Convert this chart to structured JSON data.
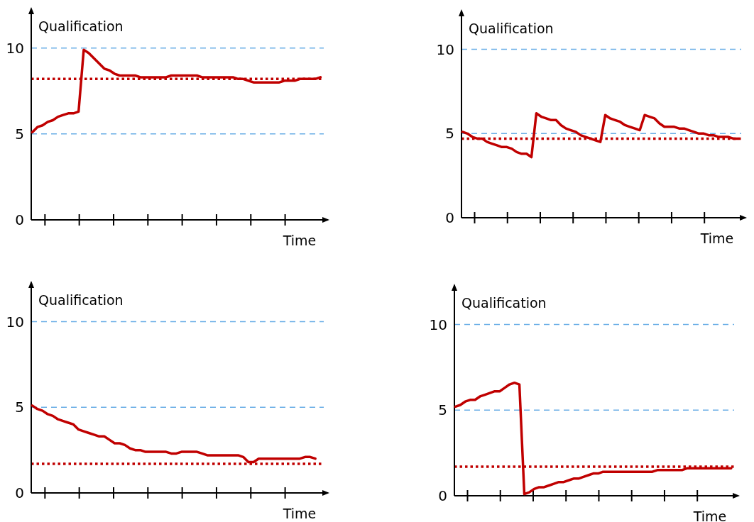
{
  "chart_data": [
    {
      "type": "line",
      "xlabel": "Time",
      "ylabel": "Qualification",
      "ylim": [
        0,
        12.3
      ],
      "yticks": [
        0,
        5,
        10
      ],
      "categories": [
        null,
        null,
        null,
        null,
        null,
        null,
        null,
        null,
        null,
        null,
        null,
        null,
        null,
        null,
        null,
        null,
        null,
        null,
        null,
        null,
        null,
        null,
        null,
        null,
        null,
        null,
        null,
        null,
        null,
        null,
        null,
        null,
        null,
        null,
        null,
        null,
        null,
        null,
        null,
        null,
        null,
        null,
        null,
        null,
        null,
        null,
        null,
        null,
        null,
        null,
        null,
        null,
        null,
        null,
        null,
        null,
        null
      ],
      "series": [
        {
          "color": "#c00000",
          "values": [
            5.1,
            5.4,
            5.5,
            5.7,
            5.8,
            6.0,
            6.1,
            6.2,
            6.2,
            6.3,
            9.9,
            9.7,
            9.4,
            9.1,
            8.8,
            8.7,
            8.5,
            8.4,
            8.4,
            8.4,
            8.4,
            8.3,
            8.3,
            8.3,
            8.3,
            8.3,
            8.3,
            8.4,
            8.4,
            8.4,
            8.4,
            8.4,
            8.4,
            8.3,
            8.3,
            8.3,
            8.3,
            8.3,
            8.3,
            8.3,
            8.2,
            8.2,
            8.1,
            8.0,
            8.0,
            8.0,
            8.0,
            8.0,
            8.0,
            8.1,
            8.1,
            8.1,
            8.2,
            8.2,
            8.2,
            8.2,
            8.3
          ]
        }
      ],
      "ref_lines": [
        {
          "axis": "y",
          "value": 5,
          "color": "#6aaee6",
          "line_style": "dashed"
        },
        {
          "axis": "y",
          "value": 10,
          "color": "#6aaee6",
          "line_style": "dashed"
        },
        {
          "axis": "y",
          "value": 8.2,
          "color": "#c00000",
          "line_style": "dotted"
        }
      ]
    },
    {
      "type": "line",
      "xlabel": "Time",
      "ylabel": "Qualification",
      "ylim": [
        0,
        12.3
      ],
      "yticks": [
        0,
        5,
        10
      ],
      "categories": [
        null,
        null,
        null,
        null,
        null,
        null,
        null,
        null,
        null,
        null,
        null,
        null,
        null,
        null,
        null,
        null,
        null,
        null,
        null,
        null,
        null,
        null,
        null,
        null,
        null,
        null,
        null,
        null,
        null,
        null,
        null,
        null,
        null,
        null,
        null,
        null,
        null,
        null,
        null,
        null,
        null,
        null,
        null,
        null,
        null,
        null,
        null,
        null,
        null,
        null,
        null,
        null,
        null,
        null,
        null,
        null,
        null
      ],
      "series": [
        {
          "color": "#c00000",
          "values": [
            5.1,
            5.0,
            4.8,
            4.7,
            4.7,
            4.5,
            4.4,
            4.3,
            4.2,
            4.2,
            4.1,
            3.9,
            3.8,
            3.8,
            3.6,
            6.2,
            6.0,
            5.9,
            5.8,
            5.8,
            5.5,
            5.3,
            5.2,
            5.1,
            4.9,
            4.8,
            4.7,
            4.6,
            4.5,
            6.1,
            5.9,
            5.8,
            5.7,
            5.5,
            5.4,
            5.3,
            5.2,
            6.1,
            6.0,
            5.9,
            5.6,
            5.4,
            5.4,
            5.4,
            5.3,
            5.3,
            5.2,
            5.1,
            5.0,
            5.0,
            4.9,
            4.9,
            4.8,
            4.8,
            4.8,
            4.7,
            4.7
          ]
        }
      ],
      "ref_lines": [
        {
          "axis": "y",
          "value": 5,
          "color": "#6aaee6",
          "line_style": "dashed"
        },
        {
          "axis": "y",
          "value": 10,
          "color": "#6aaee6",
          "line_style": "dashed"
        },
        {
          "axis": "y",
          "value": 4.7,
          "color": "#c00000",
          "line_style": "dotted"
        }
      ]
    },
    {
      "type": "line",
      "xlabel": "Time",
      "ylabel": "Qualification",
      "ylim": [
        0,
        12.3
      ],
      "yticks": [
        0,
        5,
        10
      ],
      "categories": [
        null,
        null,
        null,
        null,
        null,
        null,
        null,
        null,
        null,
        null,
        null,
        null,
        null,
        null,
        null,
        null,
        null,
        null,
        null,
        null,
        null,
        null,
        null,
        null,
        null,
        null,
        null,
        null,
        null,
        null,
        null,
        null,
        null,
        null,
        null,
        null,
        null,
        null,
        null,
        null,
        null,
        null,
        null,
        null,
        null,
        null,
        null,
        null,
        null,
        null,
        null,
        null,
        null,
        null,
        null,
        null,
        null
      ],
      "series": [
        {
          "color": "#c00000",
          "values": [
            5.1,
            4.9,
            4.8,
            4.6,
            4.5,
            4.3,
            4.2,
            4.1,
            4.0,
            3.7,
            3.6,
            3.5,
            3.4,
            3.3,
            3.3,
            3.1,
            2.9,
            2.9,
            2.8,
            2.6,
            2.5,
            2.5,
            2.4,
            2.4,
            2.4,
            2.4,
            2.4,
            2.3,
            2.3,
            2.4,
            2.4,
            2.4,
            2.4,
            2.3,
            2.2,
            2.2,
            2.2,
            2.2,
            2.2,
            2.2,
            2.2,
            2.1,
            1.8,
            1.8,
            2.0,
            2.0,
            2.0,
            2.0,
            2.0,
            2.0,
            2.0,
            2.0,
            2.0,
            2.1,
            2.1,
            2.0,
            null
          ]
        }
      ],
      "ref_lines": [
        {
          "axis": "y",
          "value": 5,
          "color": "#6aaee6",
          "line_style": "dashed"
        },
        {
          "axis": "y",
          "value": 10,
          "color": "#6aaee6",
          "line_style": "dashed"
        },
        {
          "axis": "y",
          "value": 1.7,
          "color": "#c00000",
          "line_style": "dotted"
        }
      ]
    },
    {
      "type": "line",
      "xlabel": "Time",
      "ylabel": "Qualification",
      "ylim": [
        0,
        12.3
      ],
      "yticks": [
        0,
        5,
        10
      ],
      "categories": [
        null,
        null,
        null,
        null,
        null,
        null,
        null,
        null,
        null,
        null,
        null,
        null,
        null,
        null,
        null,
        null,
        null,
        null,
        null,
        null,
        null,
        null,
        null,
        null,
        null,
        null,
        null,
        null,
        null,
        null,
        null,
        null,
        null,
        null,
        null,
        null,
        null,
        null,
        null,
        null,
        null,
        null,
        null,
        null,
        null,
        null,
        null,
        null,
        null,
        null,
        null,
        null,
        null,
        null,
        null,
        null,
        null
      ],
      "series": [
        {
          "color": "#c00000",
          "values": [
            5.2,
            5.3,
            5.5,
            5.6,
            5.6,
            5.8,
            5.9,
            6.0,
            6.1,
            6.1,
            6.3,
            6.5,
            6.6,
            6.5,
            0.1,
            0.2,
            0.4,
            0.5,
            0.5,
            0.6,
            0.7,
            0.8,
            0.8,
            0.9,
            1.0,
            1.0,
            1.1,
            1.2,
            1.3,
            1.3,
            1.4,
            1.4,
            1.4,
            1.4,
            1.4,
            1.4,
            1.4,
            1.4,
            1.4,
            1.4,
            1.4,
            1.5,
            1.5,
            1.5,
            1.5,
            1.5,
            1.5,
            1.6,
            1.6,
            1.6,
            1.6,
            1.6,
            1.6,
            1.6,
            1.6,
            1.6,
            1.6
          ]
        }
      ],
      "ref_lines": [
        {
          "axis": "y",
          "value": 5,
          "color": "#6aaee6",
          "line_style": "dashed"
        },
        {
          "axis": "y",
          "value": 10,
          "color": "#6aaee6",
          "line_style": "dashed"
        },
        {
          "axis": "y",
          "value": 1.7,
          "color": "#c00000",
          "line_style": "dotted"
        }
      ]
    }
  ]
}
